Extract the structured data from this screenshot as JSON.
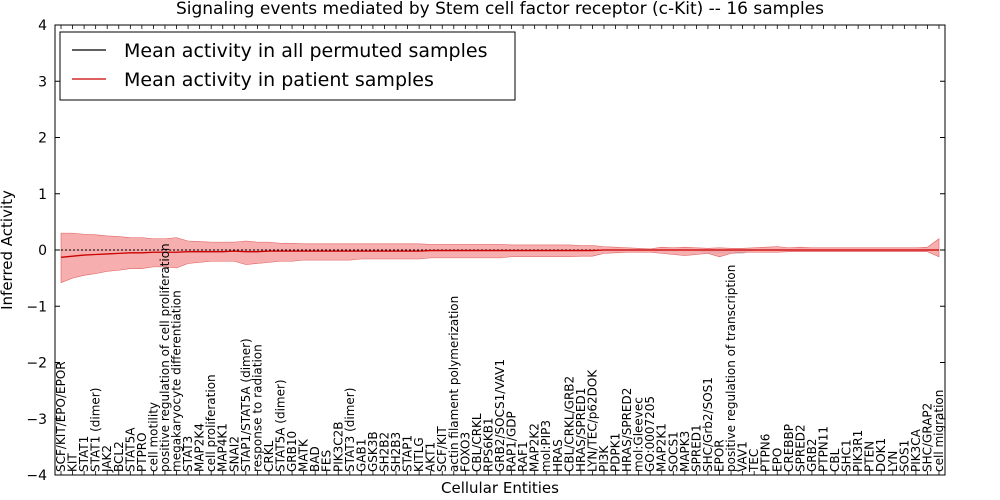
{
  "chart_data": {
    "type": "line",
    "title": "Signaling events mediated by Stem cell factor receptor (c-Kit) -- 16 samples",
    "xlabel": "Cellular Entities",
    "ylabel": "Inferred Activity",
    "ylim": [
      -4,
      4
    ],
    "yticks": [
      -4,
      -3,
      -2,
      -1,
      0,
      1,
      2,
      3,
      4
    ],
    "ytick_labels": [
      "−4",
      "−3",
      "−2",
      "−1",
      "0",
      "1",
      "2",
      "3",
      "4"
    ],
    "grid": false,
    "legend_position": "top-left",
    "colors": {
      "permuted": "#000000",
      "patient": "#cc0000",
      "patient_band": "#f4a0a0",
      "permuted_band": "#c8c8d8"
    },
    "legend": [
      {
        "label": "Mean activity in all permuted samples",
        "color": "#000000"
      },
      {
        "label": "Mean activity in patient samples",
        "color": "#cc0000"
      }
    ],
    "categories": [
      "SCF/KIT/EPO/EPOR",
      "KIT",
      "STAT1",
      "STAT1 (dimer)",
      "JAK2",
      "BCL2",
      "STAT5A",
      "PTPRO",
      "cell motility",
      "positive regulation of cell proliferation",
      "megakaryocyte differentiation",
      "STAT3",
      "MAP2K4",
      "cell proliferation",
      "MAP4K1",
      "SNAI2",
      "STAP1/STAT5A (dimer)",
      "response to radiation",
      "CRKL",
      "STAT5A (dimer)",
      "GRB10",
      "MATK",
      "BAD",
      "FES",
      "PIK3C2B",
      "STAT3 (dimer)",
      "GAB1",
      "GSK3B",
      "SH2B2",
      "SH2B3",
      "STAP1",
      "KITLG",
      "AKT1",
      "SCF/KIT",
      "actin filament polymerization",
      "FOXO3",
      "CBL/CRKL",
      "RPS6KB1",
      "GRB2/SOCS1/VAV1",
      "RAP1/GDP",
      "RAF1",
      "MAP2K2",
      "mol:PIP3",
      "HRAS",
      "CBL/CRKL/GRB2",
      "HRAS/SPRED1",
      "LYN/TEC/p62DOK",
      "PI3K",
      "PDPK1",
      "HRAS/SPRED2",
      "mol:Gleevec",
      "GO:0007205",
      "MAP2K1",
      "SOCS1",
      "MAPK3",
      "SPRED1",
      "SHC/Grb2/SOS1",
      "EPOR",
      "positive regulation of transcription",
      "VAV1",
      "TEC",
      "PTPN6",
      "EPO",
      "CREBBP",
      "SPRED2",
      "GRB2",
      "PTPN11",
      "CBL",
      "SHC1",
      "PIK3R1",
      "PTEN",
      "DOK1",
      "LYN",
      "SOS1",
      "PIK3CA",
      "SHC/GRAP2",
      "cell migration"
    ],
    "series": [
      {
        "name": "Mean activity in all permuted samples",
        "values": [
          0.0,
          0.0,
          0.0,
          0.0,
          0.0,
          0.0,
          0.0,
          0.0,
          0.0,
          0.0,
          0.0,
          0.0,
          0.0,
          0.0,
          0.0,
          0.0,
          0.0,
          0.0,
          0.0,
          0.0,
          0.0,
          0.0,
          0.0,
          0.0,
          0.0,
          0.0,
          0.0,
          0.0,
          0.0,
          0.0,
          0.0,
          0.0,
          0.0,
          0.0,
          0.0,
          0.0,
          0.0,
          0.0,
          0.0,
          0.0,
          0.0,
          0.0,
          0.0,
          0.0,
          0.0,
          0.0,
          0.0,
          0.0,
          0.0,
          0.0,
          0.0,
          0.0,
          0.0,
          0.0,
          0.0,
          0.0,
          0.0,
          0.0,
          0.0,
          0.0,
          0.0,
          0.0,
          0.0,
          0.0,
          0.0,
          0.0,
          0.0,
          0.0,
          0.0,
          0.0,
          0.0,
          0.0,
          0.0,
          0.0,
          0.0,
          0.0,
          0.0
        ]
      },
      {
        "name": "Mean activity in patient samples",
        "values": [
          -0.13,
          -0.11,
          -0.09,
          -0.08,
          -0.07,
          -0.06,
          -0.05,
          -0.05,
          -0.04,
          -0.04,
          -0.04,
          -0.03,
          -0.03,
          -0.03,
          -0.03,
          -0.02,
          -0.03,
          -0.03,
          -0.02,
          -0.02,
          -0.02,
          -0.02,
          -0.02,
          -0.02,
          -0.02,
          -0.02,
          -0.02,
          -0.02,
          -0.02,
          -0.02,
          -0.02,
          -0.02,
          -0.01,
          -0.01,
          -0.01,
          -0.01,
          -0.01,
          -0.01,
          -0.01,
          -0.01,
          -0.01,
          -0.01,
          -0.01,
          -0.01,
          -0.01,
          -0.01,
          -0.01,
          0.0,
          0.0,
          0.0,
          0.0,
          0.0,
          0.0,
          0.0,
          0.0,
          0.0,
          0.0,
          0.0,
          0.0,
          0.0,
          0.0,
          0.0,
          0.0,
          0.0,
          0.0,
          0.0,
          0.0,
          0.0,
          0.0,
          0.0,
          0.0,
          0.0,
          0.0,
          0.0,
          0.0,
          0.0,
          0.0
        ]
      }
    ],
    "patient_band_upper": [
      0.3,
      0.3,
      0.28,
      0.27,
      0.25,
      0.24,
      0.22,
      0.22,
      0.2,
      0.2,
      0.22,
      0.16,
      0.15,
      0.14,
      0.14,
      0.14,
      0.16,
      0.14,
      0.14,
      0.12,
      0.12,
      0.11,
      0.11,
      0.11,
      0.11,
      0.11,
      0.11,
      0.11,
      0.11,
      0.11,
      0.11,
      0.11,
      0.1,
      0.1,
      0.1,
      0.1,
      0.1,
      0.1,
      0.1,
      0.09,
      0.09,
      0.09,
      0.09,
      0.09,
      0.09,
      0.08,
      0.08,
      0.06,
      0.05,
      0.04,
      0.03,
      0.02,
      0.05,
      0.04,
      0.05,
      0.04,
      0.03,
      0.04,
      0.03,
      0.03,
      0.04,
      0.05,
      0.06,
      0.04,
      0.05,
      0.04,
      0.04,
      0.04,
      0.04,
      0.04,
      0.04,
      0.04,
      0.04,
      0.04,
      0.04,
      0.05,
      0.2
    ],
    "patient_band_lower": [
      -0.58,
      -0.5,
      -0.45,
      -0.42,
      -0.38,
      -0.36,
      -0.33,
      -0.33,
      -0.3,
      -0.3,
      -0.32,
      -0.24,
      -0.22,
      -0.2,
      -0.2,
      -0.2,
      -0.26,
      -0.24,
      -0.22,
      -0.2,
      -0.2,
      -0.18,
      -0.18,
      -0.18,
      -0.18,
      -0.18,
      -0.16,
      -0.16,
      -0.16,
      -0.16,
      -0.16,
      -0.16,
      -0.14,
      -0.14,
      -0.14,
      -0.14,
      -0.14,
      -0.14,
      -0.14,
      -0.12,
      -0.12,
      -0.12,
      -0.12,
      -0.12,
      -0.12,
      -0.11,
      -0.11,
      -0.06,
      -0.05,
      -0.04,
      -0.04,
      -0.04,
      -0.06,
      -0.08,
      -0.1,
      -0.08,
      -0.06,
      -0.12,
      -0.06,
      -0.04,
      -0.04,
      -0.04,
      -0.04,
      -0.03,
      -0.03,
      -0.03,
      -0.03,
      -0.03,
      -0.03,
      -0.03,
      -0.03,
      -0.03,
      -0.03,
      -0.03,
      -0.03,
      -0.03,
      -0.12
    ]
  }
}
